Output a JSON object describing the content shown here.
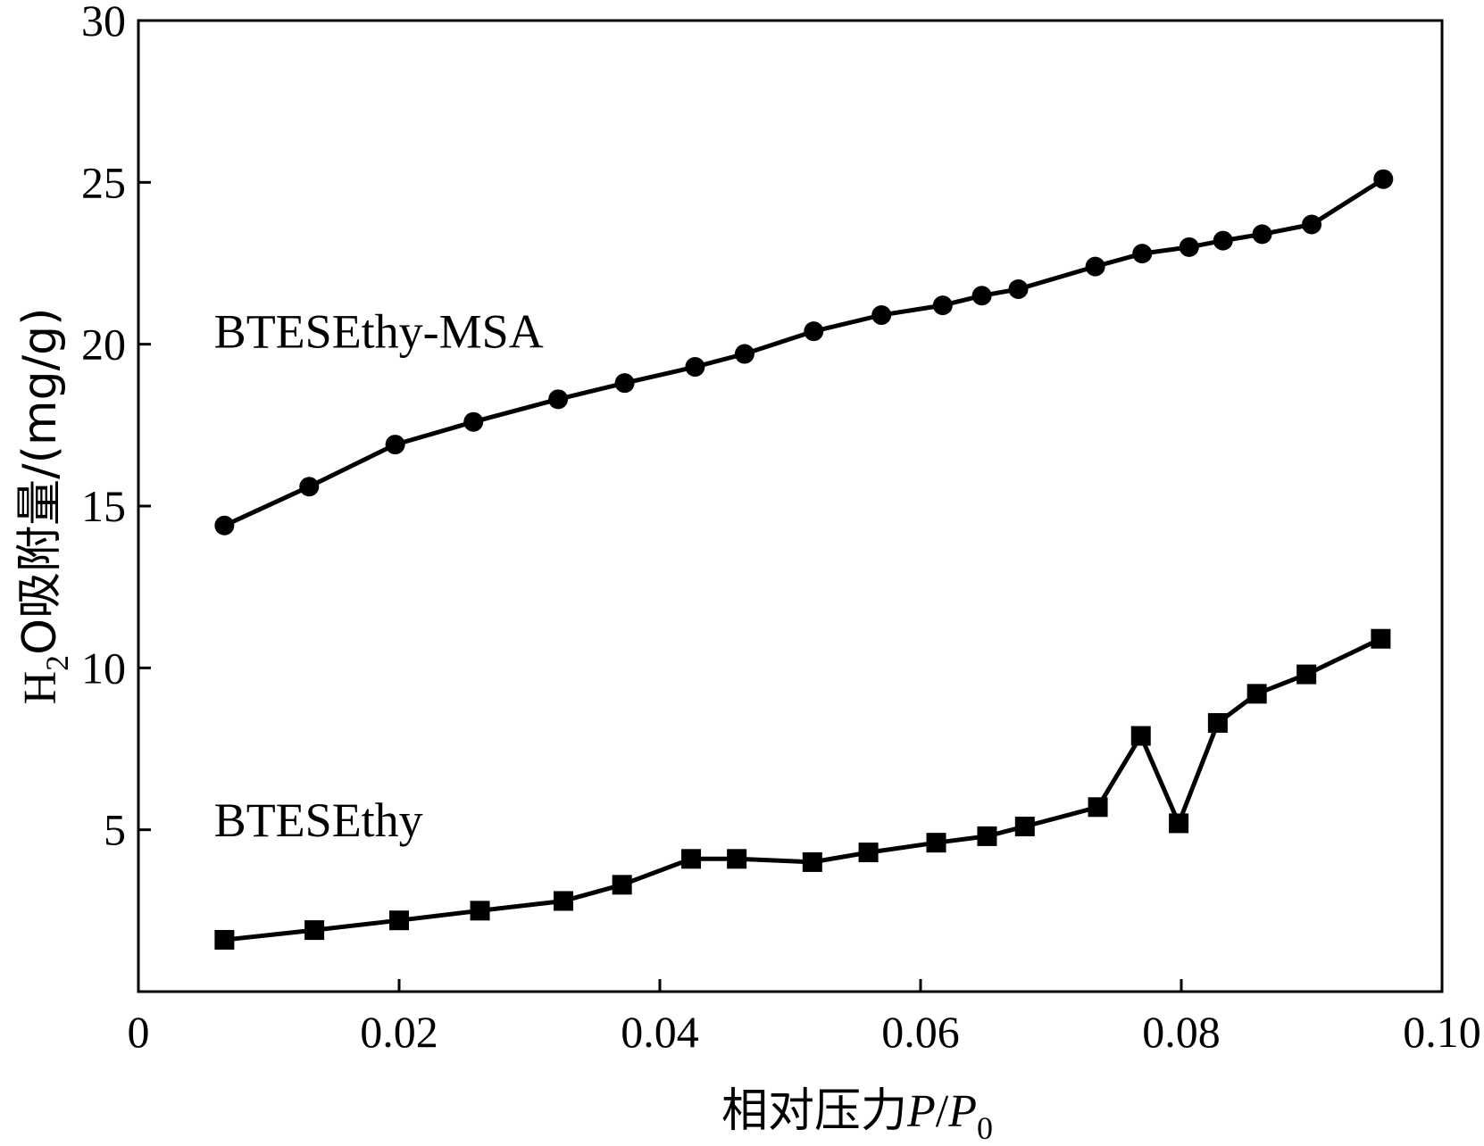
{
  "chart_data": {
    "type": "line",
    "xlabel": {
      "main": "相对压力",
      "var": "P",
      "slash": "/",
      "var2": "P",
      "sub": "0"
    },
    "ylabel": {
      "pre": "H",
      "sub": "2",
      "post": "O吸附量/(mg/g)"
    },
    "xlim": [
      0,
      0.1
    ],
    "ylim": [
      0,
      30
    ],
    "x_ticks": [
      {
        "value": 0,
        "label": "0"
      },
      {
        "value": 0.02,
        "label": "0.02"
      },
      {
        "value": 0.04,
        "label": "0.04"
      },
      {
        "value": 0.06,
        "label": "0.06"
      },
      {
        "value": 0.08,
        "label": "0.08"
      },
      {
        "value": 0.1,
        "label": "0.10"
      }
    ],
    "y_ticks": [
      {
        "value": 5,
        "label": "5"
      },
      {
        "value": 10,
        "label": "10"
      },
      {
        "value": 15,
        "label": "15"
      },
      {
        "value": 20,
        "label": "20"
      },
      {
        "value": 25,
        "label": "25"
      },
      {
        "value": 30,
        "label": "30"
      }
    ],
    "grid": false,
    "series": [
      {
        "name": "BTESEthy-MSA",
        "marker": "circle",
        "label_anchor": {
          "x": 0.0058,
          "y": 19.9
        },
        "x": [
          0.0066,
          0.0131,
          0.0197,
          0.0257,
          0.0322,
          0.0373,
          0.0427,
          0.0465,
          0.0518,
          0.057,
          0.0617,
          0.0647,
          0.0675,
          0.0734,
          0.077,
          0.0806,
          0.0832,
          0.0862,
          0.09,
          0.0955
        ],
        "y": [
          14.4,
          15.6,
          16.9,
          17.6,
          18.3,
          18.8,
          19.3,
          19.7,
          20.4,
          20.9,
          21.2,
          21.5,
          21.7,
          22.4,
          22.8,
          23.0,
          23.2,
          23.4,
          23.7,
          25.1
        ]
      },
      {
        "name": "BTESEthy",
        "marker": "square",
        "label_anchor": {
          "x": 0.0058,
          "y": 4.8
        },
        "x": [
          0.0066,
          0.0135,
          0.02,
          0.0262,
          0.0326,
          0.0371,
          0.0424,
          0.0459,
          0.0517,
          0.056,
          0.0612,
          0.0651,
          0.068,
          0.0736,
          0.0769,
          0.0798,
          0.0828,
          0.0858,
          0.0896,
          0.0953
        ],
        "y": [
          1.6,
          1.9,
          2.2,
          2.5,
          2.8,
          3.3,
          4.1,
          4.1,
          4.0,
          4.3,
          4.6,
          4.8,
          5.1,
          5.7,
          7.9,
          5.2,
          8.3,
          9.2,
          9.8,
          10.9
        ]
      }
    ]
  }
}
